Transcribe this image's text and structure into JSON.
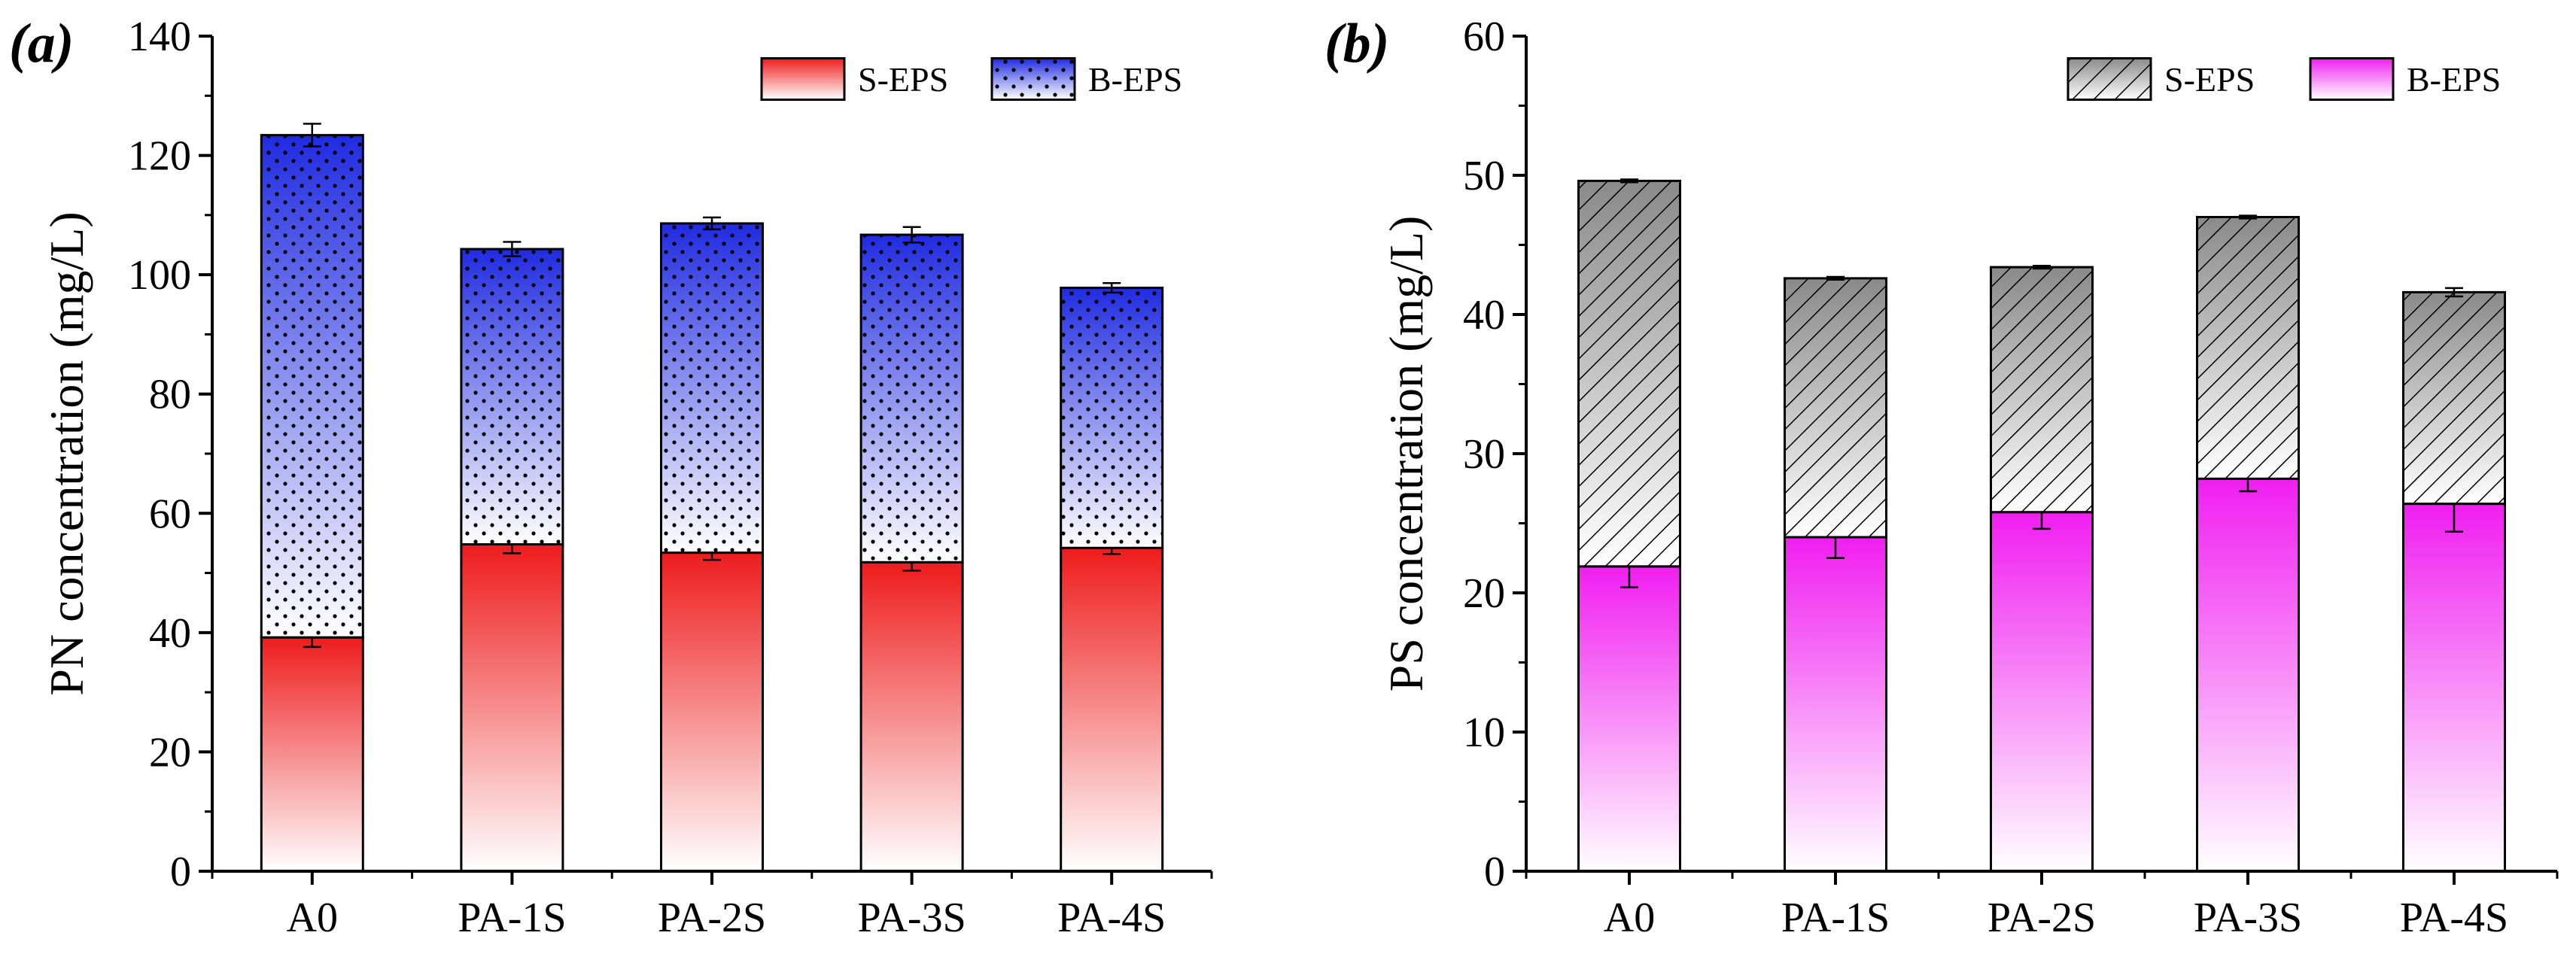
{
  "colors": {
    "axis": "#000000",
    "red_top": "#ee1c1c",
    "blue_top": "#1f2be0",
    "magenta_top": "#f01ef0",
    "gray_hatch_bg": "#9a9a9a",
    "gradient_bottom": "#ffffff"
  },
  "chart_data": [
    {
      "type": "bar",
      "stacked": true,
      "panel_label": "(a)",
      "title": "",
      "xlabel": "",
      "ylabel": "PN concentration (mg/L)",
      "ylim": [
        0,
        140
      ],
      "yticks": [
        0,
        20,
        40,
        60,
        80,
        100,
        120,
        140
      ],
      "categories": [
        "A0",
        "PA-1S",
        "PA-2S",
        "PA-3S",
        "PA-4S"
      ],
      "legend_position": "top-right",
      "series": [
        {
          "name": "S-EPS",
          "style": "red-gradient",
          "values": [
            39.2,
            54.8,
            53.4,
            51.8,
            54.2
          ],
          "errors": [
            1.6,
            1.5,
            1.2,
            1.4,
            1.0
          ]
        },
        {
          "name": "B-EPS",
          "style": "blue-gradient-dots",
          "values": [
            84.2,
            49.5,
            55.2,
            54.9,
            43.6
          ],
          "errors": [
            1.9,
            1.2,
            1.0,
            1.3,
            0.8
          ]
        }
      ]
    },
    {
      "type": "bar",
      "stacked": true,
      "panel_label": "(b)",
      "title": "",
      "xlabel": "",
      "ylabel": "PS concentration (mg/L)",
      "ylim": [
        0,
        60
      ],
      "yticks": [
        0,
        10,
        20,
        30,
        40,
        50,
        60
      ],
      "categories": [
        "A0",
        "PA-1S",
        "PA-2S",
        "PA-3S",
        "PA-4S"
      ],
      "legend_position": "top-right",
      "series": [
        {
          "name": "B-EPS",
          "style": "magenta-gradient",
          "values": [
            21.9,
            24.0,
            25.8,
            28.2,
            26.4
          ],
          "errors": [
            1.5,
            1.5,
            1.2,
            0.9,
            2.0
          ]
        },
        {
          "name": "S-EPS",
          "style": "gray-hatch",
          "values": [
            27.7,
            18.6,
            17.6,
            18.8,
            15.2
          ],
          "errors": [
            0.1,
            0.1,
            0.1,
            0.1,
            0.3
          ]
        }
      ],
      "legend_order": [
        "S-EPS",
        "B-EPS"
      ]
    }
  ]
}
